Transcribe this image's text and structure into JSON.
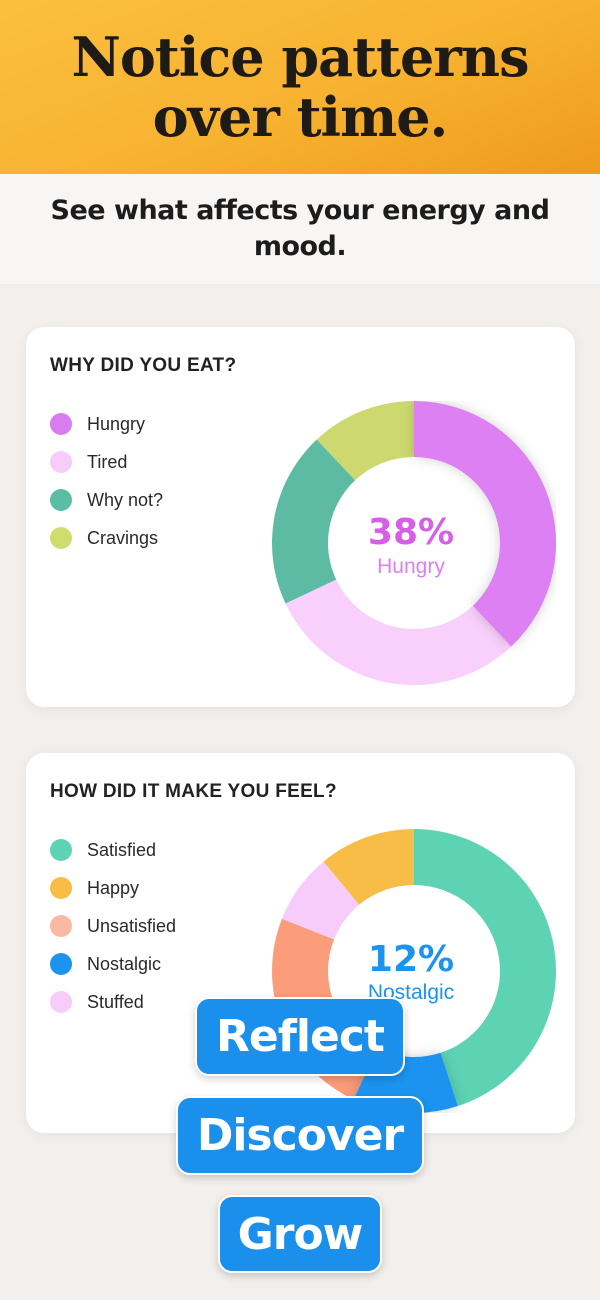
{
  "hero": {
    "title_line1": "Notice patterns",
    "title_line2": "over time."
  },
  "subtitle": {
    "line1": "See what affects your energy and",
    "line2": "mood."
  },
  "card_why": {
    "title": "WHY DID YOU EAT?",
    "legend": [
      {
        "label": "Hungry",
        "color": "#d97cf2"
      },
      {
        "label": "Tired",
        "color": "#f8ccfa"
      },
      {
        "label": "Why not?",
        "color": "#5bbea4"
      },
      {
        "label": "Cravings",
        "color": "#cedd6e"
      }
    ],
    "center_value": "38%",
    "center_label": "Hungry",
    "accent": "#d65ee8"
  },
  "card_feel": {
    "title": "HOW DID IT MAKE YOU FEEL?",
    "legend": [
      {
        "label": "Satisfied",
        "color": "#5dd3b4"
      },
      {
        "label": "Happy",
        "color": "#f8bd46"
      },
      {
        "label": "Unsatisfied",
        "color": "#fbb8a2"
      },
      {
        "label": "Nostalgic",
        "color": "#1b93ef"
      },
      {
        "label": "Stuffed",
        "color": "#f8ccfa"
      }
    ],
    "center_value": "12%",
    "center_label": "Nostalgic",
    "accent": "#1b93ef"
  },
  "buttons": {
    "reflect": "Reflect",
    "discover": "Discover",
    "grow": "Grow"
  },
  "chart_data": [
    {
      "type": "pie",
      "title": "WHY DID YOU EAT?",
      "categories": [
        "Hungry",
        "Tired",
        "Why not?",
        "Cravings"
      ],
      "values": [
        38,
        30,
        20,
        12
      ],
      "colors": [
        "#dc80f4",
        "#f9cffb",
        "#5dbba3",
        "#cdd96f"
      ],
      "highlight": "Hungry"
    },
    {
      "type": "pie",
      "title": "HOW DID IT MAKE YOU FEEL?",
      "categories": [
        "Satisfied",
        "Nostalgic",
        "Unsatisfied",
        "Stuffed",
        "Happy"
      ],
      "values": [
        45,
        12,
        24,
        8,
        11
      ],
      "colors": [
        "#5dd3b4",
        "#1b93ef",
        "#fb9c7b",
        "#f8ccfa",
        "#f8bd46"
      ],
      "highlight": "Nostalgic"
    }
  ]
}
